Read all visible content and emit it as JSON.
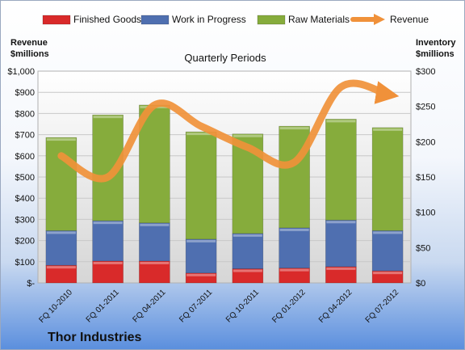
{
  "chart_data": {
    "type": "bar",
    "subtitle": "Quarterly Periods",
    "company": "Thor Industries",
    "ylabel_left": [
      "Revenue",
      "$millions"
    ],
    "ylabel_right": [
      "Inventory",
      "$millions"
    ],
    "categories": [
      "FQ 10-2010",
      "FQ 01-2011",
      "FQ 04-2011",
      "FQ 07-2011",
      "FQ 10-2011",
      "FQ 01-2012",
      "FQ 04-2012",
      "FQ 07-2012"
    ],
    "stacked_series": [
      {
        "name": "Finished Goods",
        "axis": "right",
        "color": "#d92a2a",
        "values": [
          25,
          31,
          31,
          14,
          20,
          21,
          23,
          17
        ]
      },
      {
        "name": "Work in Progress",
        "axis": "right",
        "color": "#4f6fb0",
        "values": [
          49,
          57,
          54,
          48,
          50,
          57,
          66,
          57
        ]
      },
      {
        "name": "Raw Materials",
        "axis": "right",
        "color": "#86ac3c",
        "values": [
          132,
          150,
          167,
          152,
          141,
          144,
          143,
          146
        ]
      }
    ],
    "line_series": {
      "name": "Revenue",
      "axis": "left",
      "color": "#f0913a",
      "values": [
        600,
        500,
        840,
        740,
        640,
        570,
        925,
        890
      ]
    },
    "ylim_left": [
      0,
      1000
    ],
    "ylim_right": [
      0,
      300
    ],
    "yticks_left": [
      "$-",
      "$100",
      "$200",
      "$300",
      "$400",
      "$500",
      "$600",
      "$700",
      "$800",
      "$900",
      "$1,000"
    ],
    "yticks_right": [
      "$0",
      "$50",
      "$100",
      "$150",
      "$200",
      "$250",
      "$300"
    ],
    "grid": true,
    "legend_position": "top"
  }
}
